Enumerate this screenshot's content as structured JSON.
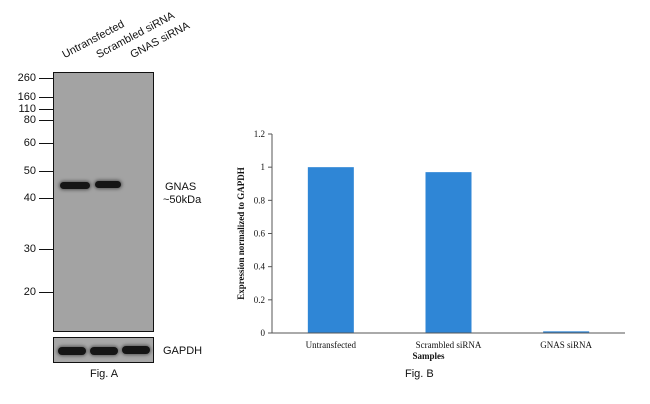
{
  "fig_a": {
    "caption": "Fig. A",
    "lanes": [
      "Untransfected",
      "Scrambled siRNA",
      "GNAS siRNA"
    ],
    "markers": [
      "260",
      "160",
      "110",
      "80",
      "60",
      "50",
      "40",
      "30",
      "20"
    ],
    "target_label": "GNAS",
    "target_size": "~50kDa",
    "loading_control": "GAPDH"
  },
  "fig_b": {
    "caption": "Fig. B"
  },
  "chart_data": {
    "type": "bar",
    "categories": [
      "Untransfected",
      "Scrambled siRNA",
      "GNAS siRNA"
    ],
    "values": [
      1.0,
      0.97,
      0.01
    ],
    "xlabel": "Samples",
    "ylabel": "Expression normalized to GAPDH",
    "ylim": [
      0,
      1.2
    ],
    "yticks": [
      "0",
      "0.2",
      "0.4",
      "0.6",
      "0.8",
      "1",
      "1.2"
    ],
    "bar_color": "#2f86d6",
    "grid": false,
    "legend": "none"
  }
}
